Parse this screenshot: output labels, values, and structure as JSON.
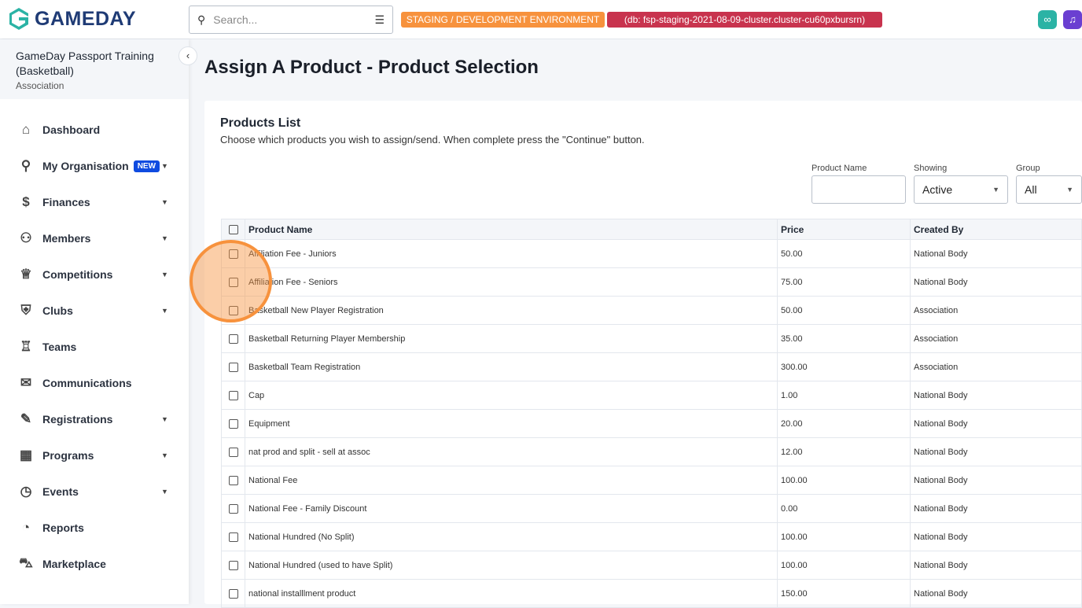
{
  "header": {
    "logo": "GAMEDAY",
    "search_placeholder": "Search...",
    "env_badge": "STAGING / DEVELOPMENT ENVIRONMENT",
    "db_badge": "(db: fsp-staging-2021-08-09-cluster.cluster-cu60pxbursrn)"
  },
  "colors": {
    "brand": "#1f3b75",
    "env": "#f7923d",
    "db": "#c8334e",
    "new": "#0f4be0"
  },
  "sidebar": {
    "org_name": "GameDay Passport Training (Basketball)",
    "org_type": "Association",
    "items": [
      {
        "label": "Dashboard",
        "icon": "home-icon"
      },
      {
        "label": "My Organisation",
        "icon": "org-chart-icon",
        "badge": "NEW",
        "caret": true
      },
      {
        "label": "Finances",
        "icon": "dollar-icon",
        "caret": true
      },
      {
        "label": "Members",
        "icon": "members-icon",
        "caret": true
      },
      {
        "label": "Competitions",
        "icon": "trophy-icon",
        "caret": true
      },
      {
        "label": "Clubs",
        "icon": "club-icon",
        "caret": true
      },
      {
        "label": "Teams",
        "icon": "jersey-icon"
      },
      {
        "label": "Communications",
        "icon": "chat-icon"
      },
      {
        "label": "Registrations",
        "icon": "form-icon",
        "caret": true
      },
      {
        "label": "Programs",
        "icon": "calendar-icon",
        "caret": true
      },
      {
        "label": "Events",
        "icon": "calendar-clock-icon",
        "caret": true
      },
      {
        "label": "Reports",
        "icon": "pie-chart-icon"
      },
      {
        "label": "Marketplace",
        "icon": "bag-icon"
      }
    ]
  },
  "page": {
    "title": "Assign A Product - Product Selection",
    "card_title": "Products List",
    "description": "Choose which products you wish to assign/send. When complete press the \"Continue\" button.",
    "filters": {
      "product_name_label": "Product Name",
      "product_name_value": "",
      "showing_label": "Showing",
      "showing_value": "Active",
      "group_label": "Group",
      "group_value": "All"
    },
    "columns": [
      "Product Name",
      "Price",
      "Created By"
    ],
    "rows": [
      [
        "Affiliation Fee - Juniors",
        "50.00",
        "National Body"
      ],
      [
        "Affiliation Fee - Seniors",
        "75.00",
        "National Body"
      ],
      [
        "Basketball New Player Registration",
        "50.00",
        "Association"
      ],
      [
        "Basketball Returning Player Membership",
        "35.00",
        "Association"
      ],
      [
        "Basketball Team Registration",
        "300.00",
        "Association"
      ],
      [
        "Cap",
        "1.00",
        "National Body"
      ],
      [
        "Equipment",
        "20.00",
        "National Body"
      ],
      [
        "nat prod and split - sell at assoc",
        "12.00",
        "National Body"
      ],
      [
        "National Fee",
        "100.00",
        "National Body"
      ],
      [
        "National Fee - Family Discount",
        "0.00",
        "National Body"
      ],
      [
        "National Hundred (No Split)",
        "100.00",
        "National Body"
      ],
      [
        "National Hundred (used to have Split)",
        "100.00",
        "National Body"
      ],
      [
        "national installlment product",
        "150.00",
        "National Body"
      ]
    ]
  }
}
